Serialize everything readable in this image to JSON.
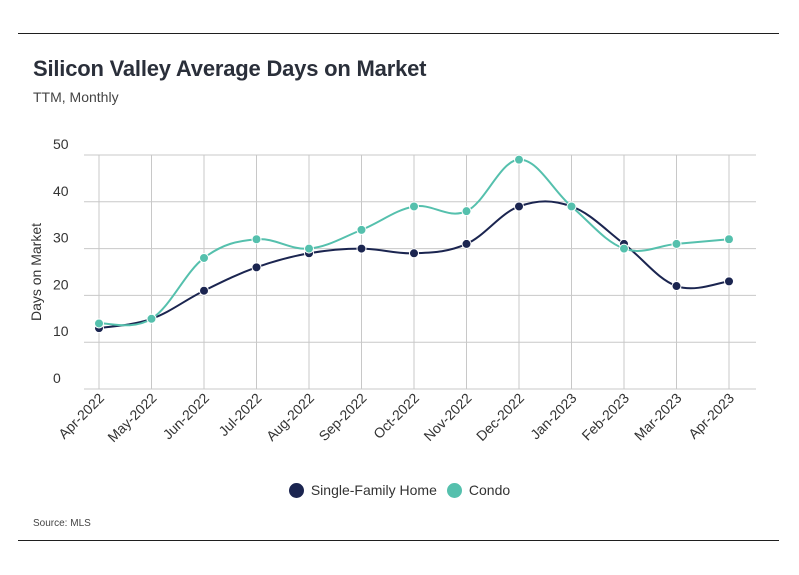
{
  "header": {
    "title": "Silicon Valley Average Days on Market",
    "subtitle": "TTM, Monthly"
  },
  "footer": {
    "source": "Source:  MLS"
  },
  "chart_data": {
    "type": "line",
    "title": "Silicon Valley Average Days on Market",
    "subtitle": "TTM, Monthly",
    "xlabel": "",
    "ylabel": "Days on Market",
    "ylim": [
      0,
      50
    ],
    "yticks": [
      0,
      10,
      20,
      30,
      40,
      50
    ],
    "grid": true,
    "legend_position": "bottom",
    "categories": [
      "Apr-2022",
      "May-2022",
      "Jun-2022",
      "Jul-2022",
      "Aug-2022",
      "Sep-2022",
      "Oct-2022",
      "Nov-2022",
      "Dec-2022",
      "Jan-2023",
      "Feb-2023",
      "Mar-2023",
      "Apr-2023"
    ],
    "series": [
      {
        "name": "Single-Family Home",
        "color": "#1b2550",
        "values": [
          13,
          15,
          21,
          26,
          29,
          30,
          29,
          31,
          39,
          39,
          31,
          22,
          23
        ]
      },
      {
        "name": "Condo",
        "color": "#55c0ad",
        "values": [
          14,
          15,
          28,
          32,
          30,
          34,
          39,
          38,
          49,
          39,
          30,
          31,
          32
        ]
      }
    ]
  }
}
